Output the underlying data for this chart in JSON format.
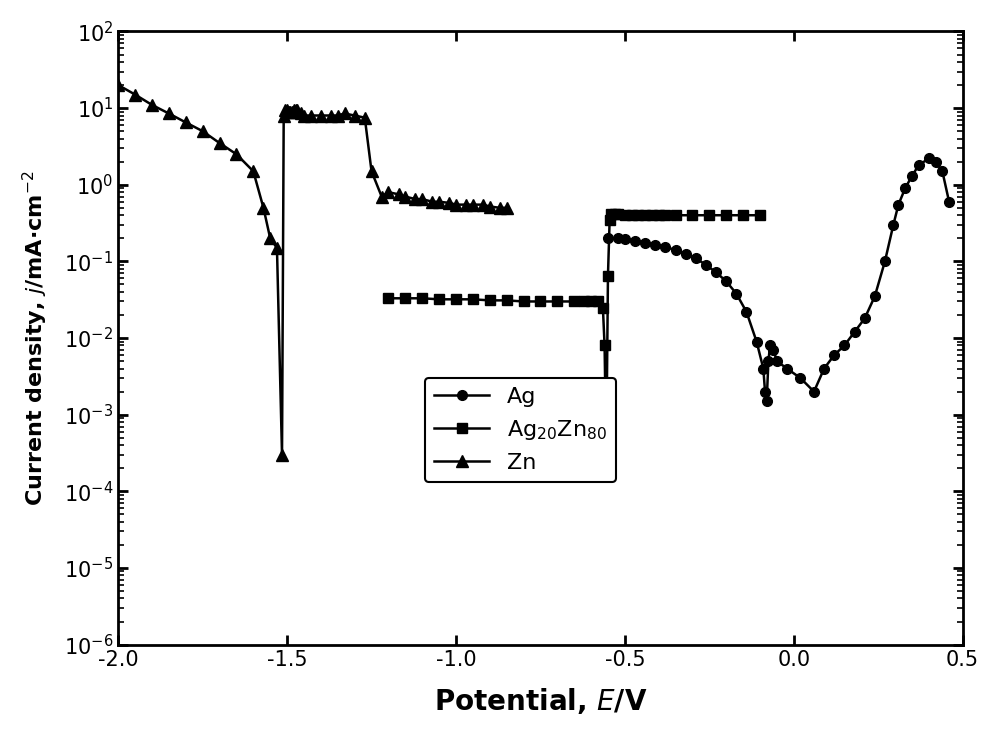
{
  "title": "",
  "xlabel": "Potential, $E$/V",
  "ylabel": "Current density, $j$/mA·cm$^{-2}$",
  "xlim": [
    -2.0,
    0.5
  ],
  "ylim": [
    1e-06,
    100.0
  ],
  "background_color": "#ffffff",
  "Ag": {
    "x": [
      -0.55,
      -0.52,
      -0.5,
      -0.47,
      -0.44,
      -0.41,
      -0.38,
      -0.35,
      -0.32,
      -0.29,
      -0.26,
      -0.23,
      -0.2,
      -0.17,
      -0.14,
      -0.11,
      -0.09,
      -0.085,
      -0.08,
      -0.075,
      -0.07,
      -0.06,
      -0.05,
      -0.02,
      0.02,
      0.06,
      0.09,
      0.12,
      0.15,
      0.18,
      0.21,
      0.24,
      0.27,
      0.295,
      0.31,
      0.33,
      0.35,
      0.37,
      0.4,
      0.42,
      0.44,
      0.46
    ],
    "y": [
      0.2,
      0.2,
      0.195,
      0.185,
      0.175,
      0.165,
      0.155,
      0.14,
      0.125,
      0.11,
      0.09,
      0.072,
      0.055,
      0.038,
      0.022,
      0.009,
      0.004,
      0.002,
      0.0015,
      0.005,
      0.008,
      0.007,
      0.005,
      0.004,
      0.003,
      0.002,
      0.004,
      0.006,
      0.008,
      0.012,
      0.018,
      0.035,
      0.1,
      0.3,
      0.55,
      0.9,
      1.3,
      1.8,
      2.2,
      2.0,
      1.5,
      0.6
    ]
  },
  "Ag20Zn80": {
    "x": [
      -1.2,
      -1.15,
      -1.1,
      -1.05,
      -1.0,
      -0.95,
      -0.9,
      -0.85,
      -0.8,
      -0.75,
      -0.7,
      -0.65,
      -0.62,
      -0.6,
      -0.58,
      -0.565,
      -0.56,
      -0.555,
      -0.55,
      -0.545,
      -0.54,
      -0.53,
      -0.52,
      -0.5,
      -0.48,
      -0.46,
      -0.44,
      -0.42,
      -0.4,
      -0.38,
      -0.35,
      -0.3,
      -0.25,
      -0.2,
      -0.15,
      -0.1
    ],
    "y": [
      0.033,
      0.033,
      0.033,
      0.032,
      0.032,
      0.032,
      0.031,
      0.031,
      0.03,
      0.03,
      0.03,
      0.03,
      0.03,
      0.03,
      0.03,
      0.025,
      0.008,
      0.0003,
      0.065,
      0.35,
      0.42,
      0.42,
      0.42,
      0.4,
      0.4,
      0.4,
      0.4,
      0.4,
      0.4,
      0.4,
      0.4,
      0.4,
      0.4,
      0.4,
      0.4,
      0.4
    ]
  },
  "Zn": {
    "x": [
      -2.0,
      -1.95,
      -1.9,
      -1.85,
      -1.8,
      -1.75,
      -1.7,
      -1.65,
      -1.6,
      -1.57,
      -1.55,
      -1.53,
      -1.515,
      -1.51,
      -1.505,
      -1.5,
      -1.495,
      -1.49,
      -1.485,
      -1.48,
      -1.475,
      -1.47,
      -1.46,
      -1.45,
      -1.43,
      -1.4,
      -1.37,
      -1.35,
      -1.33,
      -1.3,
      -1.27,
      -1.25,
      -1.22,
      -1.2,
      -1.17,
      -1.15,
      -1.12,
      -1.1,
      -1.07,
      -1.05,
      -1.02,
      -1.0,
      -0.97,
      -0.95,
      -0.92,
      -0.9,
      -0.87,
      -0.85
    ],
    "y": [
      20,
      15,
      11,
      8.5,
      6.5,
      5.0,
      3.5,
      2.5,
      1.5,
      0.5,
      0.2,
      0.15,
      0.0003,
      8.0,
      9.5,
      9.5,
      9.0,
      9.0,
      9.0,
      9.5,
      9.5,
      9.5,
      8.5,
      8.0,
      8.0,
      8.0,
      8.0,
      8.0,
      8.5,
      8.0,
      7.5,
      1.5,
      0.7,
      0.8,
      0.75,
      0.7,
      0.65,
      0.65,
      0.6,
      0.6,
      0.58,
      0.55,
      0.55,
      0.55,
      0.55,
      0.52,
      0.5,
      0.5
    ]
  }
}
